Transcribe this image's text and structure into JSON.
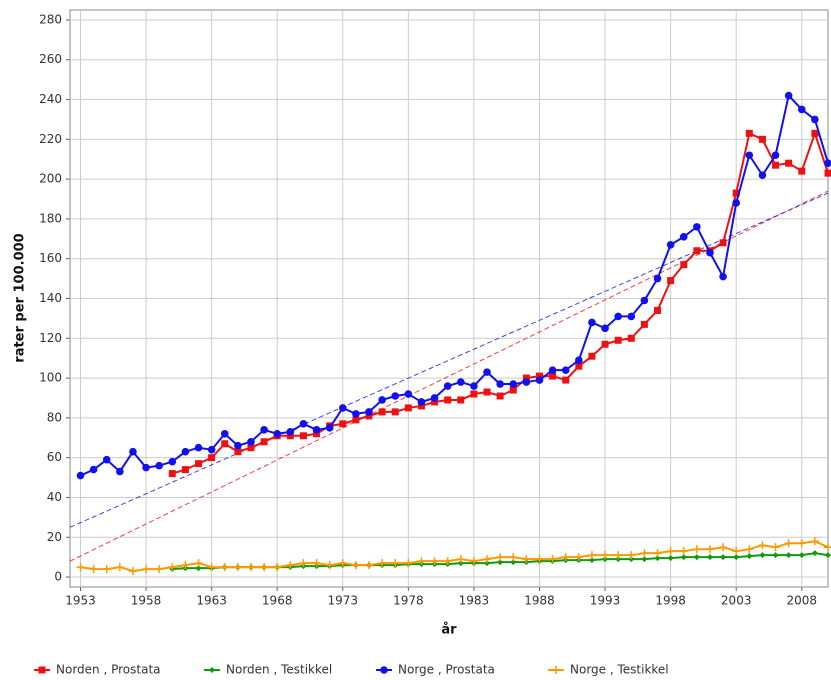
{
  "chart_data": {
    "type": "line",
    "xlabel": "år",
    "ylabel": "rater per 100.000",
    "x": [
      1953,
      1954,
      1955,
      1956,
      1957,
      1958,
      1959,
      1960,
      1961,
      1962,
      1963,
      1964,
      1965,
      1966,
      1967,
      1968,
      1969,
      1970,
      1971,
      1972,
      1973,
      1974,
      1975,
      1976,
      1977,
      1978,
      1979,
      1980,
      1981,
      1982,
      1983,
      1984,
      1985,
      1986,
      1987,
      1988,
      1989,
      1990,
      1991,
      1992,
      1993,
      1994,
      1995,
      1996,
      1997,
      1998,
      1999,
      2000,
      2001,
      2002,
      2003,
      2004,
      2005,
      2006,
      2007,
      2008,
      2009,
      2010
    ],
    "xlim": [
      1952.2,
      2010
    ],
    "xticks": [
      1953,
      1958,
      1963,
      1968,
      1973,
      1978,
      1983,
      1988,
      1993,
      1998,
      2003,
      2008
    ],
    "ylim": [
      -5,
      285
    ],
    "yticks": [
      0,
      20,
      40,
      60,
      80,
      100,
      120,
      140,
      160,
      180,
      200,
      220,
      240,
      260,
      280
    ],
    "grid": true,
    "series": [
      {
        "name": "Norden , Prostata",
        "color": "#ee1111",
        "marker": "square",
        "trend": [
          8,
          194
        ],
        "values": [
          null,
          null,
          null,
          null,
          null,
          null,
          null,
          52,
          54,
          57,
          60,
          67,
          63,
          65,
          68,
          71,
          71,
          71,
          72,
          76,
          77,
          79,
          81,
          83,
          83,
          85,
          86,
          88,
          89,
          89,
          92,
          93,
          91,
          94,
          100,
          101,
          101,
          99,
          106,
          111,
          117,
          119,
          120,
          127,
          134,
          149,
          157,
          164,
          164,
          168,
          193,
          223,
          220,
          207,
          208,
          204,
          223,
          203
        ]
      },
      {
        "name": "Norden , Testikkel",
        "color": "#119911",
        "marker": "diamond",
        "values": [
          null,
          null,
          null,
          null,
          null,
          null,
          null,
          4,
          4.5,
          4.5,
          4.5,
          5,
          5,
          5,
          5,
          5,
          5,
          5.5,
          5.5,
          5.5,
          6,
          6,
          6,
          6,
          6,
          6.5,
          6.5,
          6.5,
          6.5,
          7,
          7,
          7,
          7.5,
          7.5,
          7.5,
          8,
          8,
          8.5,
          8.5,
          8.5,
          9,
          9,
          9,
          9,
          9.5,
          9.5,
          10,
          10,
          10,
          10,
          10,
          10.5,
          11,
          11,
          11,
          11,
          12,
          11
        ]
      },
      {
        "name": "Norge , Prostata",
        "color": "#1111ee",
        "marker": "circle",
        "trend": [
          25,
          193
        ],
        "values": [
          51,
          54,
          59,
          53,
          63,
          55,
          56,
          58,
          63,
          65,
          64,
          72,
          66,
          68,
          74,
          72,
          73,
          77,
          74,
          75,
          85,
          82,
          83,
          89,
          91,
          92,
          88,
          90,
          96,
          98,
          96,
          103,
          97,
          97,
          98,
          99,
          104,
          104,
          109,
          128,
          125,
          131,
          131,
          139,
          150,
          167,
          171,
          176,
          163,
          151,
          188,
          212,
          202,
          212,
          242,
          235,
          230,
          208
        ]
      },
      {
        "name": "Norge , Testikkel",
        "color": "#ff9900",
        "marker": "plus",
        "values": [
          5,
          4,
          4,
          5,
          3,
          4,
          4,
          5,
          6,
          7,
          5,
          5,
          5,
          5,
          5,
          5,
          6,
          7,
          7,
          6,
          7,
          6,
          6,
          7,
          7,
          7,
          8,
          8,
          8,
          9,
          8,
          9,
          10,
          10,
          9,
          9,
          9,
          10,
          10,
          11,
          11,
          11,
          11,
          12,
          12,
          13,
          13,
          14,
          14,
          15,
          13,
          14,
          16,
          15,
          17,
          17,
          18,
          15
        ]
      }
    ]
  }
}
